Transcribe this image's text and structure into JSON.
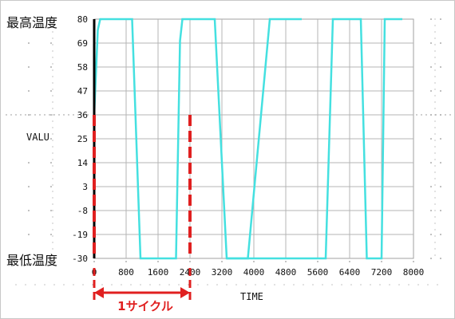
{
  "chart_data": {
    "type": "line",
    "xlabel": "TIME",
    "ylabel": "VALU",
    "xlim": [
      0,
      8000
    ],
    "ylim": [
      -30,
      80
    ],
    "x_ticks": [
      "0",
      "800",
      "1600",
      "2400",
      "3200",
      "4000",
      "4800",
      "5600",
      "6400",
      "7200",
      "8000"
    ],
    "y_ticks": [
      "80",
      "69",
      "58",
      "47",
      "36",
      "25",
      "14",
      "3",
      "-8",
      "-19",
      "-30"
    ],
    "series": [
      {
        "color": "#44e0e0",
        "x": [
          0,
          90,
          150,
          950,
          1160,
          2050,
          2150,
          2210,
          2300,
          3020,
          3320,
          5800,
          5980,
          6680,
          6830,
          7200,
          7280,
          7720
        ],
        "y": [
          36,
          75,
          80,
          80,
          -30,
          -30,
          70,
          80,
          80,
          80,
          -30,
          -30,
          80,
          80,
          -30,
          -30,
          80,
          80
        ]
      },
      {
        "color": "#44e0e0",
        "x": [
          3320,
          3850,
          4400,
          4800,
          5200
        ],
        "y": [
          -30,
          -30,
          80,
          80,
          80
        ]
      }
    ],
    "annotations": {
      "max_label": "最高温度",
      "min_label": "最低温度",
      "cycle_label": "1サイクル",
      "cycle_start_x": 0,
      "cycle_end_x": 2400,
      "marker_color": "#e02020"
    }
  }
}
